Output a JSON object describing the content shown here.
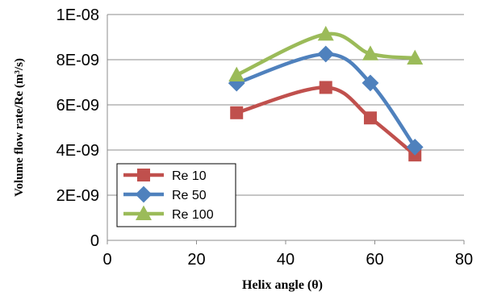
{
  "chart_data": {
    "type": "line",
    "title": "",
    "xlabel": "Helix angle (θ)",
    "ylabel": "Volume flow rate/Re (m³/s)",
    "xlim": [
      0,
      80
    ],
    "ylim": [
      0,
      1e-08
    ],
    "x_ticks": [
      "0",
      "20",
      "40",
      "60",
      "80"
    ],
    "y_ticks": [
      "0",
      "2E-09",
      "4E-09",
      "6E-09",
      "8E-09",
      "1E-08"
    ],
    "grid": "horizontal",
    "legend_position": "bottom-left",
    "x": [
      29,
      49,
      59,
      69
    ],
    "series": [
      {
        "name": "Re 10",
        "color": "#c0504d",
        "marker": "square",
        "values": [
          5.65e-09,
          6.77e-09,
          5.42e-09,
          3.78e-09
        ]
      },
      {
        "name": " Re 50",
        "color": "#4f81bd",
        "marker": "diamond",
        "values": [
          6.96e-09,
          8.25e-09,
          6.97e-09,
          4.13e-09
        ]
      },
      {
        "name": "Re 100",
        "color": "#9bbb59",
        "marker": "triangle",
        "values": [
          7.32e-09,
          9.13e-09,
          8.26e-09,
          8.07e-09
        ]
      }
    ]
  }
}
